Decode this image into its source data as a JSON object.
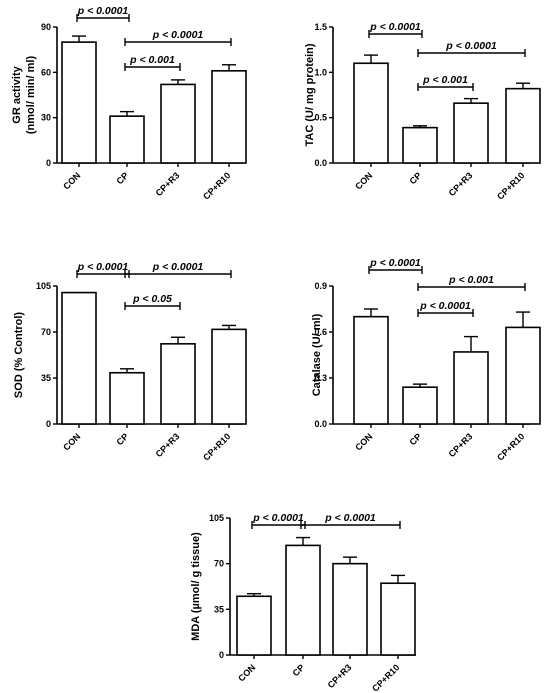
{
  "chart_data": [
    {
      "type": "bar",
      "categories": [
        "CON",
        "CP",
        "CP+R3",
        "CP+R10"
      ],
      "values": [
        80,
        31,
        52,
        61
      ],
      "errors": [
        4,
        3,
        3,
        4
      ],
      "ylabel": "GR activity",
      "ylabel2": "(nmol/ min/ ml)",
      "ylim": [
        0,
        90
      ],
      "yticks": [
        "0",
        "30",
        "60",
        "90"
      ],
      "comparisons": [
        {
          "from": 0,
          "to": 1,
          "label": "p < 0.0001"
        },
        {
          "from": 1,
          "to": 3,
          "label": "p < 0.0001"
        },
        {
          "from": 1,
          "to": 2,
          "label": "p < 0.001"
        }
      ]
    },
    {
      "type": "bar",
      "categories": [
        "CON",
        "CP",
        "CP+R3",
        "CP+R10"
      ],
      "values": [
        1.1,
        0.39,
        0.66,
        0.82
      ],
      "errors": [
        0.09,
        0.02,
        0.05,
        0.06
      ],
      "ylabel": "TAC (U/ mg protein)",
      "ylim": [
        0,
        1.5
      ],
      "yticks": [
        "0.0",
        "0.5",
        "1.0",
        "1.5"
      ],
      "comparisons": [
        {
          "from": 0,
          "to": 1,
          "label": "p < 0.0001"
        },
        {
          "from": 1,
          "to": 3,
          "label": "p < 0.0001"
        },
        {
          "from": 1,
          "to": 2,
          "label": "p < 0.001"
        }
      ]
    },
    {
      "type": "bar",
      "categories": [
        "CON",
        "CP",
        "CP+R3",
        "CP+R10"
      ],
      "values": [
        100,
        39,
        61,
        72
      ],
      "errors": [
        0,
        3,
        5,
        3
      ],
      "ylabel": "SOD (% Control)",
      "ylim": [
        0,
        105
      ],
      "yticks": [
        "0",
        "35",
        "70",
        "105"
      ],
      "comparisons": [
        {
          "from": 0,
          "to": 1,
          "label": "p < 0.0001"
        },
        {
          "from": 1,
          "to": 3,
          "label": "p < 0.0001"
        },
        {
          "from": 1,
          "to": 2,
          "label": "p < 0.05"
        }
      ]
    },
    {
      "type": "bar",
      "categories": [
        "CON",
        "CP",
        "CP+R3",
        "CP+R10"
      ],
      "values": [
        0.7,
        0.24,
        0.47,
        0.63
      ],
      "errors": [
        0.05,
        0.02,
        0.1,
        0.1
      ],
      "ylabel": "Catalase (U/ ml)",
      "ylim": [
        0,
        0.9
      ],
      "yticks": [
        "0.0",
        "0.3",
        "0.6",
        "0.9"
      ],
      "comparisons": [
        {
          "from": 0,
          "to": 1,
          "label": "p < 0.0001"
        },
        {
          "from": 1,
          "to": 3,
          "label": "p < 0.001"
        },
        {
          "from": 1,
          "to": 2,
          "label": "p < 0.0001"
        }
      ]
    },
    {
      "type": "bar",
      "categories": [
        "CON",
        "CP",
        "CP+R3",
        "CP+R10"
      ],
      "values": [
        45,
        84,
        70,
        55
      ],
      "errors": [
        2,
        6,
        5,
        6
      ],
      "ylabel": "MDA (µmol/ g tissue)",
      "ylim": [
        0,
        105
      ],
      "yticks": [
        "0",
        "35",
        "70",
        "105"
      ],
      "comparisons": [
        {
          "from": 0,
          "to": 1,
          "label": "p < 0.0001"
        },
        {
          "from": 1,
          "to": 3,
          "label": "p < 0.0001"
        }
      ]
    }
  ]
}
